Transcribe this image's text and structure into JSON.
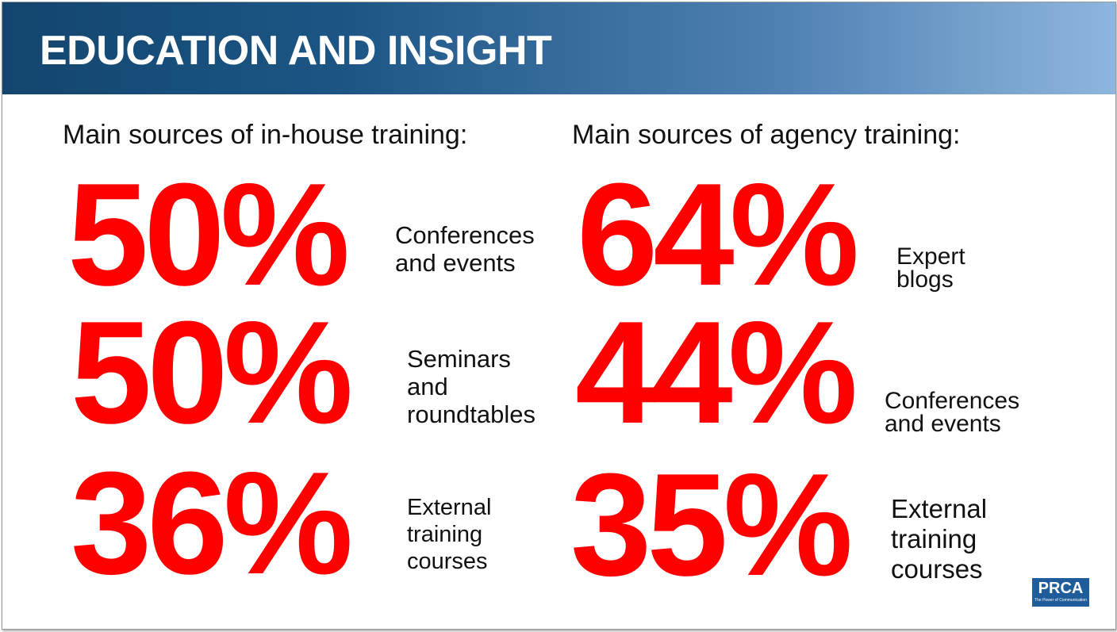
{
  "header": {
    "title": "EDUCATION AND INSIGHT"
  },
  "in_house": {
    "heading": "Main sources of in-house training:",
    "stats": [
      {
        "value": "50%",
        "label": "Conferences\nand events"
      },
      {
        "value": "50%",
        "label": "Seminars\nand\nroundtables"
      },
      {
        "value": "36%",
        "label": "External\ntraining\ncourses"
      }
    ]
  },
  "agency": {
    "heading": "Main sources of agency training:",
    "stats": [
      {
        "value": "64%",
        "label": "Expert\nblogs"
      },
      {
        "value": "44%",
        "label": "Conferences\nand events"
      },
      {
        "value": "35%",
        "label": "External\ntraining\ncourses"
      }
    ]
  },
  "logo": {
    "name": "PRCA",
    "tagline": "The Power of Communication"
  },
  "colors": {
    "accent": "#ff0000",
    "header_dark": "#13466f",
    "header_light": "#8eb6de",
    "logo_bg": "#1f5c99"
  }
}
